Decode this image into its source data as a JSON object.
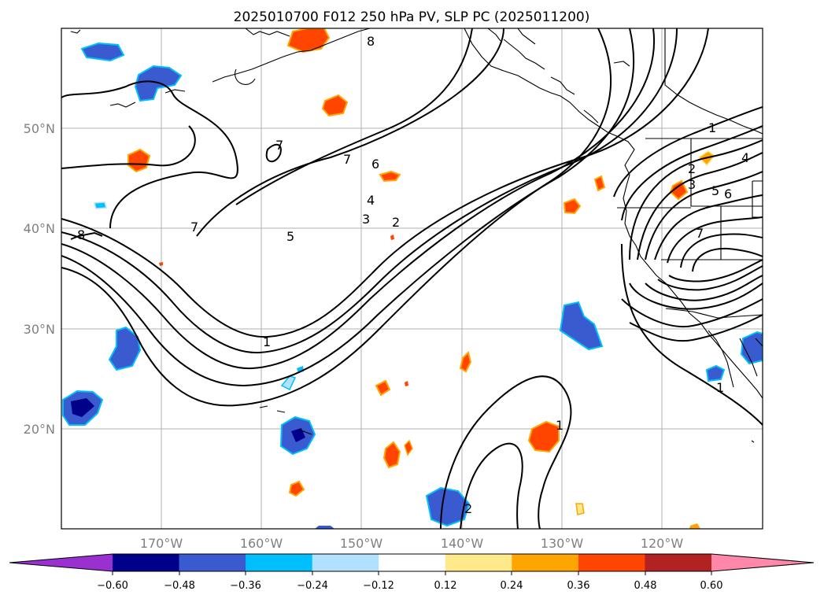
{
  "title": "2025010700 F012 250 hPa PV, SLP PC (2025011200)",
  "lat_labels": [
    "50°N",
    "40°N",
    "30°N",
    "20°N"
  ],
  "lon_labels": [
    "170°W",
    "160°W",
    "150°W",
    "140°W",
    "130°W",
    "120°W"
  ],
  "colorbar": {
    "ticks": [
      "−0.60",
      "−0.48",
      "−0.36",
      "−0.24",
      "−0.12",
      "0.12",
      "0.24",
      "0.36",
      "0.48",
      "0.60"
    ],
    "colors": [
      "#9b30d0",
      "#00008b",
      "#3a5bd0",
      "#00bfff",
      "#b0e2ff",
      "#ffffff",
      "#ffe98a",
      "#ffa500",
      "#ff4500",
      "#b22222",
      "#ff88aa"
    ]
  },
  "contour_labels": {
    "west": [
      "8",
      "7",
      "7",
      "7",
      "6",
      "5",
      "4",
      "3",
      "2",
      "1",
      "8"
    ],
    "east": [
      "1",
      "2",
      "3",
      "4",
      "5",
      "6",
      "7",
      "1"
    ],
    "south": [
      "1",
      "2"
    ]
  }
}
